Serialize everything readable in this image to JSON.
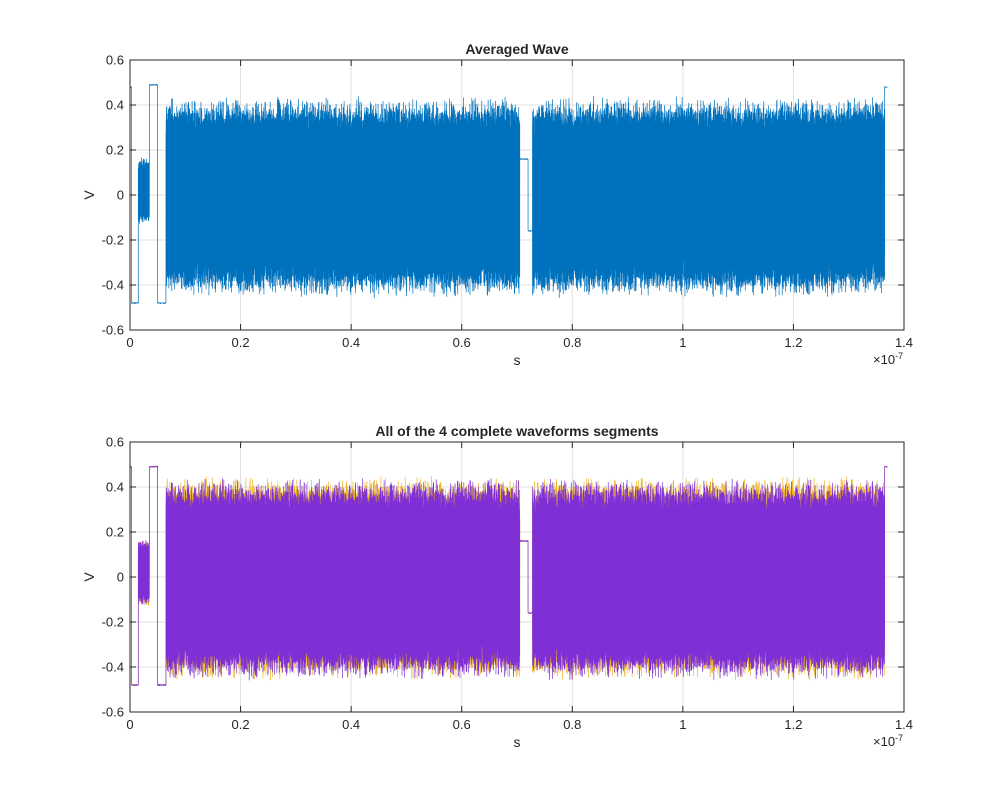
{
  "chart_data": [
    {
      "type": "line",
      "title": "Averaged Wave",
      "xlabel": "s",
      "ylabel": "V",
      "x_exponent_label": "×10",
      "x_exponent": "-7",
      "xlim": [
        0,
        1.4
      ],
      "ylim": [
        -0.6,
        0.6
      ],
      "x_ticks": [
        0,
        0.2,
        0.4,
        0.6,
        0.8,
        1,
        1.2,
        1.4
      ],
      "x_tick_labels": [
        "0",
        "0.2",
        "0.4",
        "0.6",
        "0.8",
        "1",
        "1.2",
        "1.4"
      ],
      "y_ticks": [
        -0.6,
        -0.4,
        -0.2,
        0,
        0.2,
        0.4,
        0.6
      ],
      "y_tick_labels": [
        "-0.6",
        "-0.4",
        "-0.2",
        "0",
        "0.2",
        "0.4",
        "0.6"
      ],
      "grid": true,
      "x_end": 1.37,
      "series": [
        {
          "color": "#0072BD",
          "segments": [
            {
              "x": [
                0,
                0.003
              ],
              "level": 0.48,
              "kind": "flat"
            },
            {
              "x": [
                0.003,
                0.015
              ],
              "level": -0.48,
              "kind": "flat"
            },
            {
              "x": [
                0.015,
                0.035
              ],
              "low": -0.13,
              "high": 0.17,
              "kind": "noise"
            },
            {
              "x": [
                0.035,
                0.05
              ],
              "level": 0.49,
              "kind": "flat"
            },
            {
              "x": [
                0.05,
                0.065
              ],
              "level": -0.48,
              "kind": "flat"
            },
            {
              "x": [
                0.065,
                0.705
              ],
              "low": -0.46,
              "high": 0.44,
              "kind": "noise"
            },
            {
              "x": [
                0.705,
                0.72
              ],
              "level": 0.16,
              "kind": "flat"
            },
            {
              "x": [
                0.72,
                0.728
              ],
              "level": -0.16,
              "kind": "flat"
            },
            {
              "x": [
                0.728,
                1.365
              ],
              "low": -0.46,
              "high": 0.44,
              "kind": "noise"
            },
            {
              "x": [
                1.365,
                1.37
              ],
              "level": 0.48,
              "kind": "flat"
            }
          ]
        }
      ]
    },
    {
      "type": "line",
      "title": "All of the 4 complete waveforms segments",
      "xlabel": "s",
      "ylabel": "V",
      "x_exponent_label": "×10",
      "x_exponent": "-7",
      "xlim": [
        0,
        1.4
      ],
      "ylim": [
        -0.6,
        0.6
      ],
      "x_ticks": [
        0,
        0.2,
        0.4,
        0.6,
        0.8,
        1,
        1.2,
        1.4
      ],
      "x_tick_labels": [
        "0",
        "0.2",
        "0.4",
        "0.6",
        "0.8",
        "1",
        "1.2",
        "1.4"
      ],
      "y_ticks": [
        -0.6,
        -0.4,
        -0.2,
        0,
        0.2,
        0.4,
        0.6
      ],
      "y_tick_labels": [
        "-0.6",
        "-0.4",
        "-0.2",
        "0",
        "0.2",
        "0.4",
        "0.6"
      ],
      "grid": true,
      "x_end": 1.37,
      "series": [
        {
          "color": "#EDB120",
          "segments": [
            {
              "x": [
                0,
                0.003
              ],
              "level": 0.49,
              "kind": "flat"
            },
            {
              "x": [
                0.003,
                0.015
              ],
              "level": -0.48,
              "kind": "flat"
            },
            {
              "x": [
                0.015,
                0.035
              ],
              "low": -0.13,
              "high": 0.17,
              "kind": "noise"
            },
            {
              "x": [
                0.035,
                0.05
              ],
              "level": 0.49,
              "kind": "flat"
            },
            {
              "x": [
                0.05,
                0.065
              ],
              "level": -0.48,
              "kind": "flat"
            },
            {
              "x": [
                0.065,
                0.705
              ],
              "low": -0.46,
              "high": 0.45,
              "kind": "noise"
            },
            {
              "x": [
                0.705,
                0.72
              ],
              "level": 0.16,
              "kind": "flat"
            },
            {
              "x": [
                0.72,
                0.728
              ],
              "level": -0.16,
              "kind": "flat"
            },
            {
              "x": [
                0.728,
                1.365
              ],
              "low": -0.46,
              "high": 0.45,
              "kind": "noise"
            },
            {
              "x": [
                1.365,
                1.37
              ],
              "level": 0.49,
              "kind": "flat"
            }
          ]
        },
        {
          "color": "#7E2FD6",
          "segments": [
            {
              "x": [
                0,
                0.003
              ],
              "level": 0.49,
              "kind": "flat"
            },
            {
              "x": [
                0.003,
                0.015
              ],
              "level": -0.48,
              "kind": "flat"
            },
            {
              "x": [
                0.015,
                0.035
              ],
              "low": -0.13,
              "high": 0.17,
              "kind": "noise"
            },
            {
              "x": [
                0.035,
                0.05
              ],
              "level": 0.49,
              "kind": "flat"
            },
            {
              "x": [
                0.05,
                0.065
              ],
              "level": -0.48,
              "kind": "flat"
            },
            {
              "x": [
                0.065,
                0.705
              ],
              "low": -0.46,
              "high": 0.44,
              "kind": "noise"
            },
            {
              "x": [
                0.705,
                0.72
              ],
              "level": 0.16,
              "kind": "flat"
            },
            {
              "x": [
                0.72,
                0.728
              ],
              "level": -0.16,
              "kind": "flat"
            },
            {
              "x": [
                0.728,
                1.365
              ],
              "low": -0.46,
              "high": 0.44,
              "kind": "noise"
            },
            {
              "x": [
                1.365,
                1.37
              ],
              "level": 0.49,
              "kind": "flat"
            }
          ]
        }
      ]
    }
  ]
}
